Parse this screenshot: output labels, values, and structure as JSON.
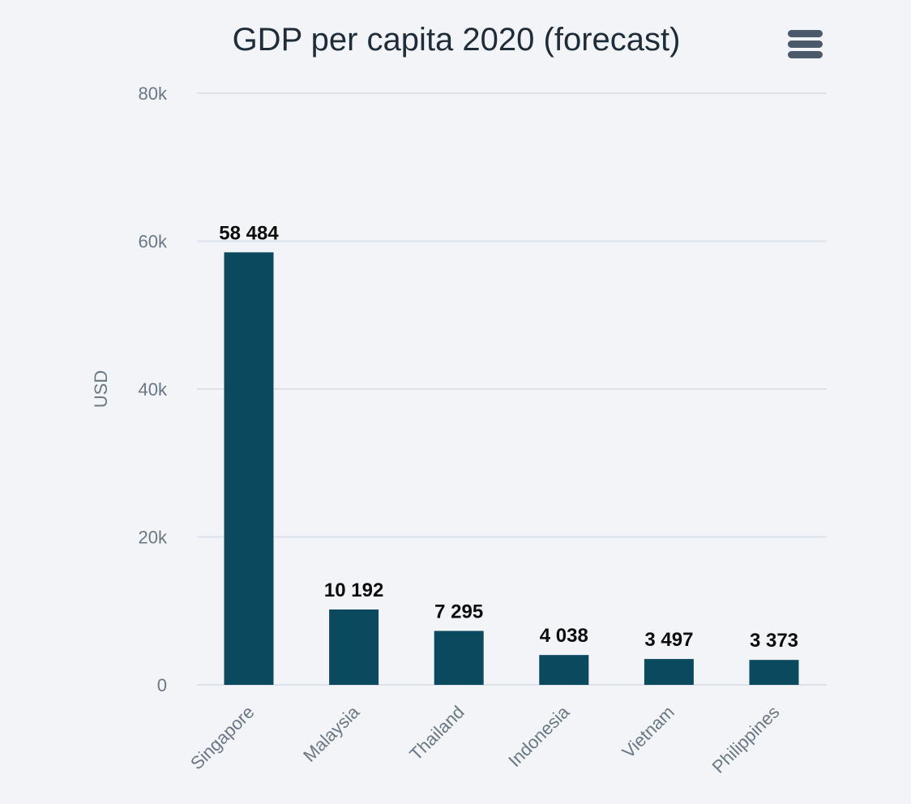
{
  "chart_data": {
    "type": "bar",
    "title": "GDP per capita 2020 (forecast)",
    "xlabel": "",
    "ylabel": "USD",
    "categories": [
      "Singapore",
      "Malaysia",
      "Thailand",
      "Indonesia",
      "Vietnam",
      "Philippines"
    ],
    "values": [
      58484,
      10192,
      7295,
      4038,
      3497,
      3373
    ],
    "data_labels": [
      "58 484",
      "10 192",
      "7 295",
      "4 038",
      "3 497",
      "3 373"
    ],
    "ylim": [
      0,
      80000
    ],
    "yticks": [
      0,
      20000,
      40000,
      60000,
      80000
    ],
    "ytick_labels": [
      "0",
      "20k",
      "40k",
      "60k",
      "80k"
    ],
    "grid": true,
    "legend": "none",
    "colors": {
      "bar": "#0b4a5e",
      "background": "#f2f4f7",
      "menu_icon": "#4a5a6a"
    }
  },
  "menu": {
    "icon": "hamburger-menu-icon"
  }
}
